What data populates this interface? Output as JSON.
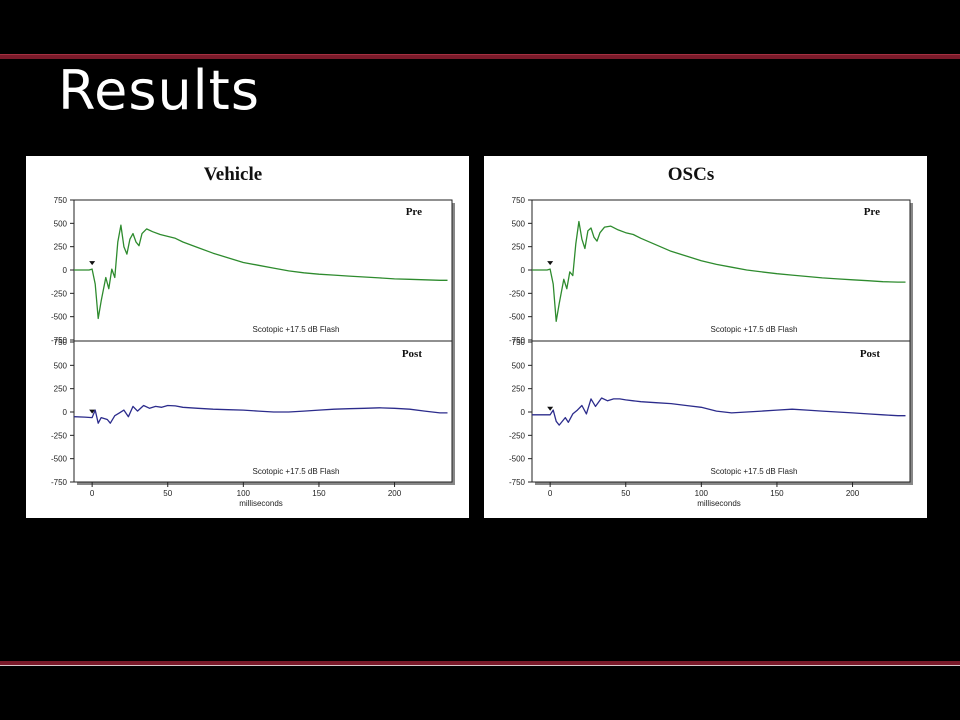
{
  "slide": {
    "title": "Results"
  },
  "colors": {
    "pre_trace": "#2e8b2e",
    "post_trace": "#2c2c8c",
    "accent_rule": "#7a1a2a"
  },
  "chart_data": [
    {
      "type": "line",
      "title": "Vehicle",
      "xlabel": "milliseconds",
      "x_ticks": [
        0,
        50,
        100,
        150,
        200
      ],
      "xlim": [
        -12,
        238
      ],
      "y_ticks": [
        750,
        500,
        250,
        0,
        -250,
        -500,
        -750
      ],
      "y_tick_labels": [
        "750",
        "500",
        "250",
        "0",
        "-250",
        "-500",
        "-750"
      ],
      "ylim": [
        -750,
        750
      ],
      "panels": [
        {
          "name": "Pre",
          "note": "Scotopic +17.5 dB Flash",
          "series": [
            {
              "x": [
                -12,
                -2,
                0,
                2,
                4,
                6,
                9,
                11,
                13,
                15,
                17,
                19,
                21,
                23,
                25,
                27,
                29,
                31,
                33,
                36,
                40,
                45,
                50,
                55,
                60,
                70,
                80,
                90,
                100,
                110,
                120,
                130,
                140,
                150,
                160,
                170,
                180,
                190,
                200,
                210,
                220,
                230,
                235
              ],
              "y": [
                0,
                0,
                10,
                -150,
                -520,
                -330,
                -80,
                -200,
                10,
                -80,
                300,
                480,
                250,
                170,
                330,
                390,
                300,
                260,
                390,
                440,
                410,
                380,
                360,
                340,
                300,
                240,
                180,
                130,
                80,
                50,
                20,
                -10,
                -30,
                -45,
                -55,
                -65,
                -75,
                -85,
                -95,
                -100,
                -105,
                -110,
                -110
              ]
            }
          ]
        },
        {
          "name": "Post",
          "note": "Scotopic +17.5 dB Flash",
          "series": [
            {
              "x": [
                -12,
                -5,
                0,
                2,
                4,
                6,
                10,
                12,
                15,
                18,
                21,
                24,
                27,
                30,
                34,
                38,
                42,
                46,
                50,
                55,
                60,
                70,
                80,
                90,
                100,
                110,
                120,
                130,
                140,
                150,
                160,
                170,
                180,
                190,
                200,
                210,
                220,
                230,
                235
              ],
              "y": [
                -50,
                -55,
                -60,
                20,
                -120,
                -60,
                -80,
                -120,
                -40,
                -10,
                20,
                -50,
                60,
                10,
                70,
                40,
                60,
                50,
                70,
                65,
                50,
                40,
                30,
                25,
                20,
                10,
                0,
                0,
                10,
                20,
                30,
                35,
                40,
                45,
                40,
                30,
                10,
                -10,
                -10
              ]
            }
          ]
        }
      ]
    },
    {
      "type": "line",
      "title": "OSCs",
      "xlabel": "milliseconds",
      "x_ticks": [
        0,
        50,
        100,
        150,
        200
      ],
      "xlim": [
        -12,
        238
      ],
      "y_ticks": [
        750,
        500,
        250,
        0,
        -250,
        -500,
        -750
      ],
      "y_tick_labels": [
        "750",
        "500",
        "250",
        "0",
        "-250",
        "-500",
        "-750"
      ],
      "ylim": [
        -750,
        750
      ],
      "panels": [
        {
          "name": "Pre",
          "note": "Scotopic +17.5 dB Flash",
          "series": [
            {
              "x": [
                -12,
                -2,
                0,
                2,
                4,
                6,
                9,
                11,
                13,
                15,
                17,
                19,
                21,
                23,
                25,
                27,
                29,
                31,
                33,
                36,
                40,
                45,
                50,
                55,
                60,
                70,
                80,
                90,
                100,
                110,
                120,
                130,
                140,
                150,
                160,
                170,
                180,
                190,
                200,
                210,
                220,
                230,
                235
              ],
              "y": [
                0,
                0,
                10,
                -150,
                -550,
                -360,
                -100,
                -200,
                -20,
                -60,
                280,
                520,
                330,
                230,
                420,
                450,
                350,
                310,
                400,
                460,
                470,
                430,
                400,
                380,
                340,
                270,
                200,
                150,
                100,
                60,
                30,
                0,
                -20,
                -40,
                -55,
                -70,
                -85,
                -95,
                -105,
                -115,
                -125,
                -130,
                -130
              ]
            }
          ]
        },
        {
          "name": "Post",
          "note": "Scotopic +17.5 dB Flash",
          "series": [
            {
              "x": [
                -12,
                -5,
                0,
                2,
                4,
                6,
                10,
                12,
                15,
                18,
                21,
                24,
                27,
                30,
                34,
                38,
                42,
                46,
                50,
                55,
                60,
                70,
                80,
                90,
                100,
                110,
                120,
                130,
                140,
                150,
                160,
                170,
                180,
                190,
                200,
                210,
                220,
                230,
                235
              ],
              "y": [
                -30,
                -30,
                -30,
                20,
                -100,
                -140,
                -60,
                -110,
                -20,
                20,
                70,
                -20,
                140,
                60,
                150,
                120,
                140,
                140,
                130,
                120,
                110,
                100,
                90,
                70,
                50,
                10,
                -10,
                0,
                10,
                20,
                30,
                20,
                10,
                0,
                -10,
                -20,
                -30,
                -40,
                -40
              ]
            }
          ]
        }
      ]
    }
  ]
}
